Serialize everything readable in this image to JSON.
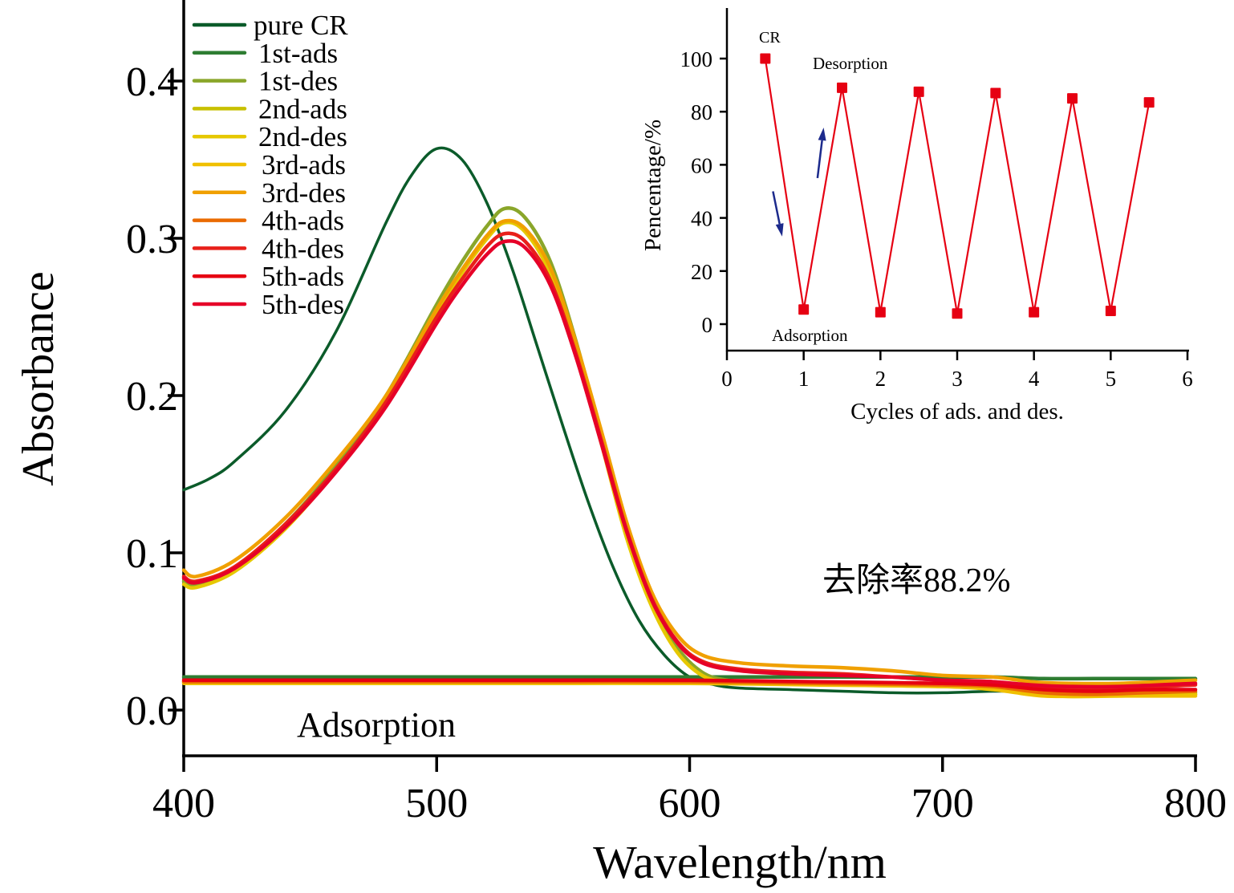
{
  "chart_data": [
    {
      "type": "line",
      "id": "main",
      "title": "",
      "xlabel": "Wavelength/nm",
      "ylabel": "Absorbance",
      "xlim": [
        400,
        800
      ],
      "ylim": [
        -0.03,
        0.45
      ],
      "xticks": [
        400,
        500,
        600,
        700,
        800
      ],
      "xtick_labels": [
        "400",
        "500",
        "600",
        "700",
        "800"
      ],
      "yticks": [
        0.0,
        0.1,
        0.2,
        0.3,
        0.4
      ],
      "ytick_labels": [
        "0.0",
        "0.1",
        "0.2",
        "0.3",
        "0.4"
      ],
      "grid": false,
      "legend_position": "top-left",
      "annotations": [
        {
          "text": "Adsorption",
          "x": 480,
          "y": -0.012
        },
        {
          "text": "去除率88.2%",
          "x": 682,
          "y": 0.082
        }
      ],
      "series": [
        {
          "name": "pure CR",
          "color": "#0b5b2a",
          "x": [
            400,
            410,
            420,
            440,
            460,
            480,
            490,
            500,
            510,
            520,
            530,
            540,
            550,
            560,
            570,
            580,
            590,
            600,
            610,
            620,
            640,
            660,
            680,
            700,
            720,
            740,
            760,
            780,
            800
          ],
          "y": [
            0.14,
            0.147,
            0.158,
            0.19,
            0.24,
            0.31,
            0.34,
            0.357,
            0.35,
            0.322,
            0.28,
            0.23,
            0.18,
            0.132,
            0.09,
            0.057,
            0.035,
            0.021,
            0.016,
            0.014,
            0.013,
            0.012,
            0.011,
            0.011,
            0.012,
            0.012,
            0.012,
            0.013,
            0.013
          ]
        },
        {
          "name": "1st-ads",
          "color": "#2e7d32",
          "x": [
            400,
            450,
            500,
            550,
            600,
            650,
            700,
            720,
            740,
            760,
            780,
            800
          ],
          "y": [
            0.021,
            0.021,
            0.021,
            0.021,
            0.021,
            0.021,
            0.021,
            0.021,
            0.02,
            0.02,
            0.02,
            0.02
          ]
        },
        {
          "name": "1st-des",
          "color": "#8aa62a",
          "x": [
            400,
            405,
            420,
            440,
            460,
            480,
            500,
            510,
            520,
            527,
            535,
            545,
            555,
            565,
            575,
            585,
            595,
            605,
            615,
            630,
            660,
            700,
            730,
            745,
            770,
            800
          ],
          "y": [
            0.082,
            0.08,
            0.09,
            0.118,
            0.155,
            0.2,
            0.258,
            0.285,
            0.308,
            0.319,
            0.313,
            0.285,
            0.235,
            0.175,
            0.115,
            0.07,
            0.04,
            0.024,
            0.019,
            0.018,
            0.017,
            0.016,
            0.015,
            0.01,
            0.01,
            0.011
          ]
        },
        {
          "name": "2nd-ads",
          "color": "#c8c000",
          "x": [
            400,
            450,
            500,
            550,
            600,
            650,
            700,
            720,
            740,
            760,
            780,
            800
          ],
          "y": [
            0.018,
            0.018,
            0.018,
            0.018,
            0.018,
            0.017,
            0.016,
            0.014,
            0.01,
            0.01,
            0.01,
            0.01
          ]
        },
        {
          "name": "2nd-des",
          "color": "#e6c800",
          "x": [
            400,
            405,
            420,
            440,
            460,
            480,
            500,
            510,
            520,
            527,
            535,
            545,
            555,
            565,
            575,
            585,
            595,
            605,
            615,
            630,
            660,
            700,
            730,
            745,
            770,
            800
          ],
          "y": [
            0.08,
            0.078,
            0.088,
            0.115,
            0.152,
            0.196,
            0.252,
            0.278,
            0.3,
            0.31,
            0.304,
            0.277,
            0.228,
            0.17,
            0.11,
            0.066,
            0.037,
            0.022,
            0.018,
            0.017,
            0.016,
            0.015,
            0.014,
            0.009,
            0.009,
            0.01
          ]
        },
        {
          "name": "3rd-ads",
          "color": "#f0c000",
          "x": [
            400,
            450,
            500,
            550,
            600,
            650,
            700,
            720,
            740,
            760,
            780,
            800
          ],
          "y": [
            0.017,
            0.017,
            0.017,
            0.017,
            0.017,
            0.016,
            0.015,
            0.013,
            0.009,
            0.009,
            0.009,
            0.009
          ]
        },
        {
          "name": "3rd-des",
          "color": "#f0a000",
          "x": [
            400,
            405,
            420,
            440,
            460,
            480,
            500,
            510,
            520,
            527,
            535,
            545,
            555,
            565,
            575,
            585,
            595,
            605,
            620,
            640,
            660,
            680,
            700,
            720,
            735,
            750,
            770,
            800
          ],
          "y": [
            0.089,
            0.085,
            0.095,
            0.122,
            0.158,
            0.2,
            0.255,
            0.28,
            0.302,
            0.311,
            0.306,
            0.281,
            0.234,
            0.178,
            0.12,
            0.075,
            0.048,
            0.035,
            0.03,
            0.028,
            0.027,
            0.025,
            0.022,
            0.021,
            0.018,
            0.017,
            0.017,
            0.019
          ]
        },
        {
          "name": "4th-ads",
          "color": "#ea6a00",
          "x": [
            400,
            450,
            500,
            550,
            600,
            650,
            700,
            720,
            740,
            760,
            780,
            800
          ],
          "y": [
            0.018,
            0.018,
            0.018,
            0.018,
            0.018,
            0.017,
            0.016,
            0.015,
            0.011,
            0.01,
            0.011,
            0.012
          ]
        },
        {
          "name": "4th-des",
          "color": "#e8201a",
          "x": [
            400,
            405,
            420,
            440,
            460,
            480,
            500,
            510,
            520,
            527,
            535,
            545,
            555,
            565,
            575,
            585,
            595,
            605,
            620,
            640,
            660,
            680,
            700,
            720,
            735,
            750,
            770,
            800
          ],
          "y": [
            0.085,
            0.082,
            0.091,
            0.118,
            0.153,
            0.196,
            0.25,
            0.274,
            0.295,
            0.303,
            0.298,
            0.273,
            0.227,
            0.172,
            0.115,
            0.071,
            0.044,
            0.031,
            0.026,
            0.024,
            0.023,
            0.021,
            0.019,
            0.018,
            0.015,
            0.014,
            0.014,
            0.016
          ]
        },
        {
          "name": "5th-ads",
          "color": "#e60012",
          "x": [
            400,
            450,
            500,
            550,
            600,
            650,
            700,
            720,
            740,
            760,
            780,
            800
          ],
          "y": [
            0.019,
            0.019,
            0.019,
            0.019,
            0.019,
            0.018,
            0.017,
            0.016,
            0.013,
            0.012,
            0.013,
            0.013
          ]
        },
        {
          "name": "5th-des",
          "color": "#e60028",
          "x": [
            400,
            405,
            420,
            440,
            460,
            480,
            500,
            510,
            520,
            527,
            535,
            545,
            555,
            565,
            575,
            585,
            595,
            605,
            620,
            640,
            660,
            680,
            700,
            720,
            735,
            750,
            770,
            800
          ],
          "y": [
            0.084,
            0.081,
            0.09,
            0.116,
            0.151,
            0.193,
            0.246,
            0.27,
            0.29,
            0.298,
            0.294,
            0.27,
            0.225,
            0.17,
            0.114,
            0.07,
            0.043,
            0.03,
            0.025,
            0.023,
            0.022,
            0.021,
            0.019,
            0.018,
            0.016,
            0.015,
            0.015,
            0.017
          ]
        }
      ]
    },
    {
      "type": "line",
      "id": "inset",
      "title": "",
      "xlabel": "Cycles of ads. and des.",
      "ylabel": "Pencentage/%",
      "xlim": [
        0,
        6
      ],
      "ylim": [
        -10,
        119
      ],
      "xticks": [
        0,
        1,
        2,
        3,
        4,
        5,
        6
      ],
      "xtick_labels": [
        "0",
        "1",
        "2",
        "3",
        "4",
        "5",
        "6"
      ],
      "yticks": [
        0,
        20,
        40,
        60,
        80,
        100
      ],
      "ytick_labels": [
        "0",
        "20",
        "40",
        "60",
        "80",
        "100"
      ],
      "grid": false,
      "annotations": [
        {
          "text": "CR",
          "x": 0.55,
          "y": 107
        },
        {
          "text": "Desorption",
          "x": 1.7,
          "y": 96
        },
        {
          "text": "Adsorption",
          "x": 1.2,
          "y": -4
        }
      ],
      "arrows": [
        {
          "direction": "down",
          "from": [
            0.6,
            50
          ],
          "to": [
            0.72,
            33
          ]
        },
        {
          "direction": "up",
          "from": [
            1.18,
            55
          ],
          "to": [
            1.26,
            74
          ]
        }
      ],
      "series": [
        {
          "name": "Percentage",
          "color": "#e60012",
          "marker": "square",
          "x": [
            0.5,
            1,
            1.5,
            2,
            2.5,
            3,
            3.5,
            4,
            4.5,
            5,
            5.5
          ],
          "y": [
            100,
            5.5,
            89,
            4.5,
            87.5,
            4,
            87,
            4.5,
            85,
            5,
            83.5
          ]
        }
      ]
    }
  ]
}
